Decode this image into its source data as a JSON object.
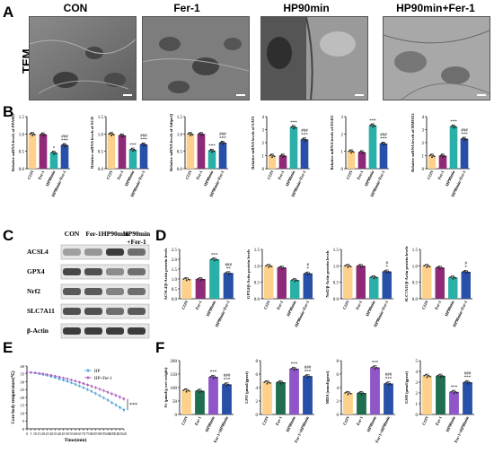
{
  "panel_letters": {
    "a": "A",
    "b": "B",
    "c": "C",
    "d": "D",
    "e": "E",
    "f": "F"
  },
  "tem": {
    "side_label": "TEM",
    "titles": [
      "CON",
      "Fer-1",
      "HP90min",
      "HP90min+Fer-1"
    ]
  },
  "groups": [
    "CON",
    "Fer-1",
    "HP90min",
    "HP90min+Fer-1"
  ],
  "groups_f": [
    "CON",
    "Fer-1",
    "HP90min",
    "Fer-1+HP90min"
  ],
  "colors": {
    "con": "#fdd18b",
    "fer": "#8e2a78",
    "hp": "#2ab0a8",
    "hpfer": "#2850a8",
    "fer_f": "#1f6e4f",
    "hp_f": "#9055c8"
  },
  "western": {
    "header": [
      "CON",
      "Fer-1",
      "HP90min",
      "HP90min\n+Fer-1"
    ],
    "proteins": [
      "ACSL4",
      "GPX4",
      "Nrf2",
      "SLC7A11",
      "β-Actin"
    ]
  },
  "chart_data": [
    {
      "id": "B1",
      "type": "bar",
      "categories": [
        "CON",
        "Fer-1",
        "HP90min",
        "HP90min+Fer-1"
      ],
      "values": [
        1.0,
        0.99,
        0.46,
        0.68
      ],
      "ylabel": "Relative mRNA levels of PPARG",
      "ylim": [
        0,
        1.5
      ],
      "yticks": [
        "0.0",
        "0.5",
        "1.0",
        "1.5"
      ],
      "sig": [
        "",
        "",
        "*",
        "###\n***"
      ]
    },
    {
      "id": "B2",
      "type": "bar",
      "categories": [
        "CON",
        "Fer-1",
        "HP90min",
        "HP90min+Fer-1"
      ],
      "values": [
        1.0,
        0.96,
        0.55,
        0.7
      ],
      "ylabel": "Relative mRNA levels of SCD",
      "ylim": [
        0,
        1.5
      ],
      "yticks": [
        "0.0",
        "0.5",
        "1.0",
        "1.5"
      ],
      "sig": [
        "",
        "",
        "***",
        "###\n***"
      ]
    },
    {
      "id": "B3",
      "type": "bar",
      "categories": [
        "CON",
        "Fer-1",
        "HP90min",
        "HP90min+Fer-1"
      ],
      "values": [
        1.0,
        1.0,
        0.52,
        0.75
      ],
      "ylabel": "Relative mRNA levels of AdipoQ",
      "ylim": [
        0,
        1.5
      ],
      "yticks": [
        "0.0",
        "0.5",
        "1.0",
        "1.5"
      ],
      "sig": [
        "",
        "",
        "***",
        "###\n***"
      ]
    },
    {
      "id": "B4",
      "type": "bar",
      "categories": [
        "CON",
        "Fer-1",
        "HP90min",
        "HP90min+Fer-1"
      ],
      "values": [
        1.0,
        1.0,
        3.2,
        2.25
      ],
      "ylabel": "Relative mRNA levels of SAT1",
      "ylim": [
        0,
        4
      ],
      "yticks": [
        "0",
        "1",
        "2",
        "3",
        "4"
      ],
      "sig": [
        "",
        "",
        "***",
        "###\n***"
      ]
    },
    {
      "id": "B5",
      "type": "bar",
      "categories": [
        "CON",
        "Fer-1",
        "HP90min",
        "HP90min+Fer-1"
      ],
      "values": [
        1.0,
        0.95,
        2.5,
        1.45
      ],
      "ylabel": "Relative mRNA levels of EGR1",
      "ylim": [
        0,
        3
      ],
      "yticks": [
        "0",
        "1",
        "2",
        "3"
      ],
      "sig": [
        "",
        "",
        "***",
        "###\n***"
      ]
    },
    {
      "id": "B6",
      "type": "bar",
      "categories": [
        "CON",
        "Fer-1",
        "HP90min",
        "HP90min+Fer-1"
      ],
      "values": [
        1.0,
        1.0,
        3.25,
        2.3
      ],
      "ylabel": "Relative mRNA levels of HMOX1",
      "ylim": [
        0,
        4
      ],
      "yticks": [
        "0",
        "1",
        "2",
        "3",
        "4"
      ],
      "sig": [
        "",
        "",
        "***",
        "###\n***"
      ]
    },
    {
      "id": "D1",
      "type": "bar",
      "categories": [
        "CON",
        "Fer-1",
        "HP90min",
        "HP90min+Fer-1"
      ],
      "values": [
        1.0,
        1.0,
        2.0,
        1.3
      ],
      "ylabel": "ACSL4/β-Actin protein levels",
      "ylim": [
        0,
        2.5
      ],
      "yticks": [
        "0.0",
        "0.5",
        "1.0",
        "1.5",
        "2.0",
        "2.5"
      ],
      "sig": [
        "",
        "",
        "***",
        "###\n**"
      ]
    },
    {
      "id": "D2",
      "type": "bar",
      "categories": [
        "CON",
        "Fer-1",
        "HP90min",
        "HP90min+Fer-1"
      ],
      "values": [
        1.0,
        0.95,
        0.57,
        0.77
      ],
      "ylabel": "GPX4/β-Actin protein levels",
      "ylim": [
        0,
        1.5
      ],
      "yticks": [
        "0.0",
        "0.5",
        "1.0",
        "1.5"
      ],
      "sig": [
        "",
        "",
        "",
        "#\n*"
      ]
    },
    {
      "id": "D3",
      "type": "bar",
      "categories": [
        "CON",
        "Fer-1",
        "HP90min",
        "HP90min+Fer-1"
      ],
      "values": [
        1.0,
        1.0,
        0.66,
        0.83
      ],
      "ylabel": "Nrf2/β-Actin protein levels",
      "ylim": [
        0,
        1.5
      ],
      "yticks": [
        "0.0",
        "0.5",
        "1.0",
        "1.5"
      ],
      "sig": [
        "",
        "",
        "",
        "#\n*"
      ]
    },
    {
      "id": "D4",
      "type": "bar",
      "categories": [
        "CON",
        "Fer-1",
        "HP90min",
        "HP90min+Fer-1"
      ],
      "values": [
        1.0,
        0.95,
        0.65,
        0.82
      ],
      "ylabel": "SLC7A11/β-Actin protein levels",
      "ylim": [
        0,
        1.5
      ],
      "yticks": [
        "0.0",
        "0.5",
        "1.0",
        "1.5"
      ],
      "sig": [
        "",
        "",
        "",
        "#\n*"
      ]
    },
    {
      "id": "E",
      "type": "line",
      "ylabel": "Core body temperature(℃)",
      "xlabel": "Time(min)",
      "ylim": [
        0,
        40
      ],
      "yticks": [
        "0",
        "5",
        "10",
        "15",
        "20",
        "25",
        "30",
        "35",
        "40"
      ],
      "xlim": [
        0,
        120
      ],
      "xticks": [
        "0",
        "5",
        "10",
        "15",
        "20",
        "25",
        "30",
        "35",
        "40",
        "45",
        "50",
        "55",
        "60",
        "65",
        "70",
        "75",
        "80",
        "85",
        "90",
        "95",
        "100",
        "105",
        "110",
        "115",
        "120"
      ],
      "sig": "***",
      "legend": "top-right",
      "series": [
        {
          "name": "HP",
          "color": "#4aa8e0",
          "x": [
            0,
            5,
            10,
            15,
            20,
            25,
            30,
            35,
            40,
            45,
            50,
            55,
            60,
            65,
            70,
            75,
            80,
            85,
            90,
            95,
            100,
            105,
            110,
            115,
            120
          ],
          "y": [
            36.0,
            35.8,
            35.5,
            35.0,
            34.5,
            34.0,
            33.3,
            32.6,
            31.8,
            31.0,
            30.2,
            29.3,
            28.3,
            27.3,
            26.2,
            25.0,
            23.8,
            22.5,
            21.1,
            19.7,
            18.3,
            16.7,
            15.2,
            13.6,
            12.0
          ]
        },
        {
          "name": "HP+Fer-1",
          "color": "#b060c0",
          "x": [
            0,
            5,
            10,
            15,
            20,
            25,
            30,
            35,
            40,
            45,
            50,
            55,
            60,
            65,
            70,
            75,
            80,
            85,
            90,
            95,
            100,
            105,
            110,
            115,
            120
          ],
          "y": [
            36.0,
            35.9,
            35.7,
            35.4,
            35.0,
            34.6,
            34.1,
            33.6,
            33.0,
            32.4,
            31.8,
            31.1,
            30.4,
            29.6,
            28.8,
            28.0,
            27.1,
            26.2,
            25.3,
            24.3,
            23.3,
            22.3,
            21.3,
            20.2,
            19.0
          ]
        }
      ]
    },
    {
      "id": "F1",
      "type": "bar",
      "categories": [
        "CON",
        "Fer-1",
        "HP90min",
        "Fer-1+HP90min"
      ],
      "values": [
        90,
        88,
        140,
        112
      ],
      "ylabel": "Fe (μmol/g wet weight)",
      "ylim": [
        0,
        200
      ],
      "yticks": [
        "0",
        "50",
        "100",
        "150",
        "200"
      ],
      "sig": [
        "",
        "",
        "***",
        "###\n***"
      ]
    },
    {
      "id": "F2",
      "type": "bar",
      "categories": [
        "CON",
        "Fer-1",
        "HP90min",
        "Fer-1+HP90min"
      ],
      "values": [
        4.8,
        4.8,
        6.8,
        5.7
      ],
      "ylabel": "LPO (μmol/gprot)",
      "ylim": [
        0,
        8
      ],
      "yticks": [
        "0",
        "2",
        "4",
        "6",
        "8"
      ],
      "sig": [
        "",
        "",
        "***",
        "###\n***"
      ]
    },
    {
      "id": "F3",
      "type": "bar",
      "categories": [
        "CON",
        "Fer-1",
        "HP90min",
        "Fer-1+HP90min"
      ],
      "values": [
        3.2,
        3.2,
        7.0,
        4.6
      ],
      "ylabel": "MDA (nmol/gprot)",
      "ylim": [
        0,
        8
      ],
      "yticks": [
        "0",
        "2",
        "4",
        "6",
        "8"
      ],
      "sig": [
        "",
        "",
        "***",
        "###\n***"
      ]
    },
    {
      "id": "F4",
      "type": "bar",
      "categories": [
        "CON",
        "Fer-1",
        "HP90min",
        "Fer-1+HP90min"
      ],
      "values": [
        3.6,
        3.6,
        2.1,
        3.0
      ],
      "ylabel": "GSH (μmol/gprot)",
      "ylim": [
        0,
        5
      ],
      "yticks": [
        "0",
        "1",
        "2",
        "3",
        "4",
        "5"
      ],
      "sig": [
        "",
        "",
        "***",
        "###\n***"
      ]
    }
  ]
}
